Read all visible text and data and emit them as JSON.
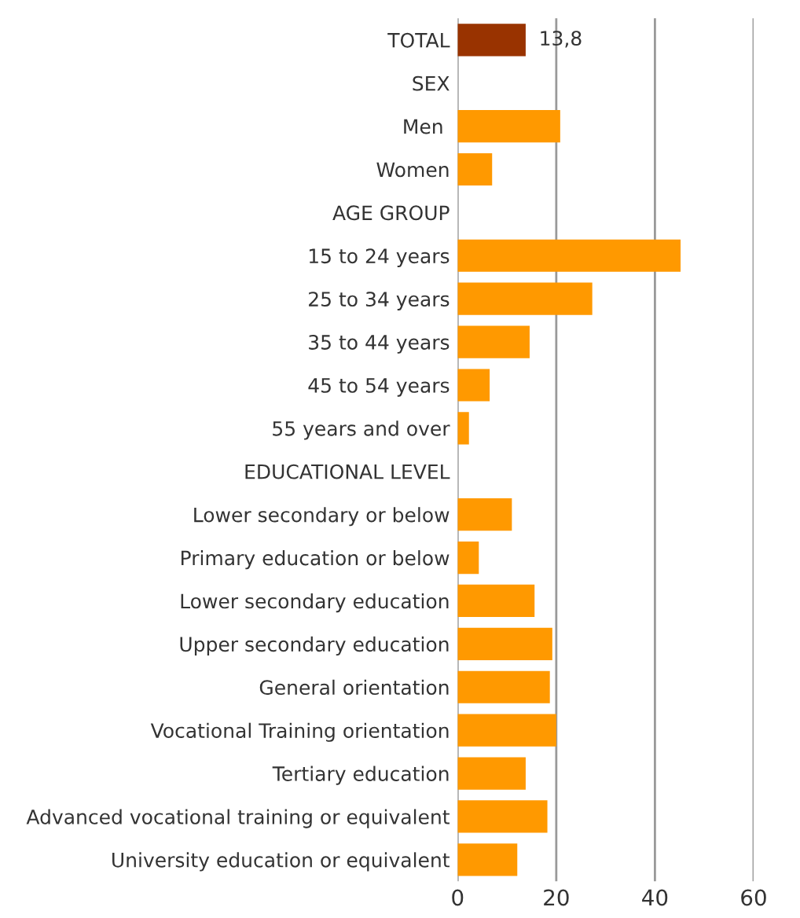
{
  "chart_data": {
    "type": "bar",
    "orientation": "horizontal",
    "categories": [
      "TOTAL",
      "SEX",
      "Men ",
      "Women",
      "AGE GROUP",
      "15 to 24 years",
      "25 to 34 years",
      "35 to 44 years",
      "45 to 54 years",
      "55 years and over",
      "EDUCATIONAL LEVEL",
      "Lower secondary or below",
      "Primary education or below",
      "Lower secondary education",
      "Upper secondary education",
      "General orientation",
      "Vocational Training orientation",
      "Tertiary education",
      "Advanced vocational training or equivalent",
      "University education or equivalent"
    ],
    "values": [
      13.8,
      null,
      20.8,
      7.0,
      null,
      45.2,
      27.3,
      14.6,
      6.5,
      2.3,
      null,
      11.0,
      4.3,
      15.6,
      19.2,
      18.7,
      20.0,
      13.8,
      18.2,
      12.1
    ],
    "colors": [
      "#993300",
      null,
      "#ff9900",
      "#ff9900",
      null,
      "#ff9900",
      "#ff9900",
      "#ff9900",
      "#ff9900",
      "#ff9900",
      null,
      "#ff9900",
      "#ff9900",
      "#ff9900",
      "#ff9900",
      "#ff9900",
      "#ff9900",
      "#ff9900",
      "#ff9900",
      "#ff9900"
    ],
    "value_labels": [
      "13,8",
      null,
      null,
      null,
      null,
      null,
      null,
      null,
      null,
      null,
      null,
      null,
      null,
      null,
      null,
      null,
      null,
      null,
      null,
      null
    ],
    "xlim": [
      0,
      60
    ],
    "xticks": [
      0,
      20,
      40,
      60
    ],
    "grid": "x"
  }
}
